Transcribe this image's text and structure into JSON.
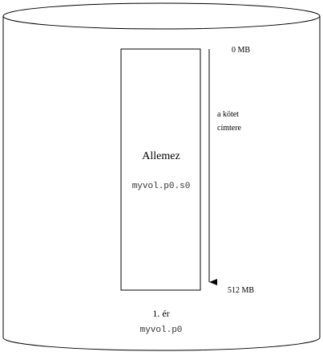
{
  "disk": {
    "slice_title": "Allemez",
    "slice_name": "myvol.p0.s0",
    "scale_top": "0 MB",
    "scale_bottom": "512 MB",
    "arrow_caption_line1": "a kötet",
    "arrow_caption_line2": "címtere",
    "disk_title": "1. ér",
    "disk_name": "myvol.p0"
  },
  "colors": {
    "stroke": "#000000",
    "background": "#ffffff",
    "mono_text": "#333333"
  }
}
